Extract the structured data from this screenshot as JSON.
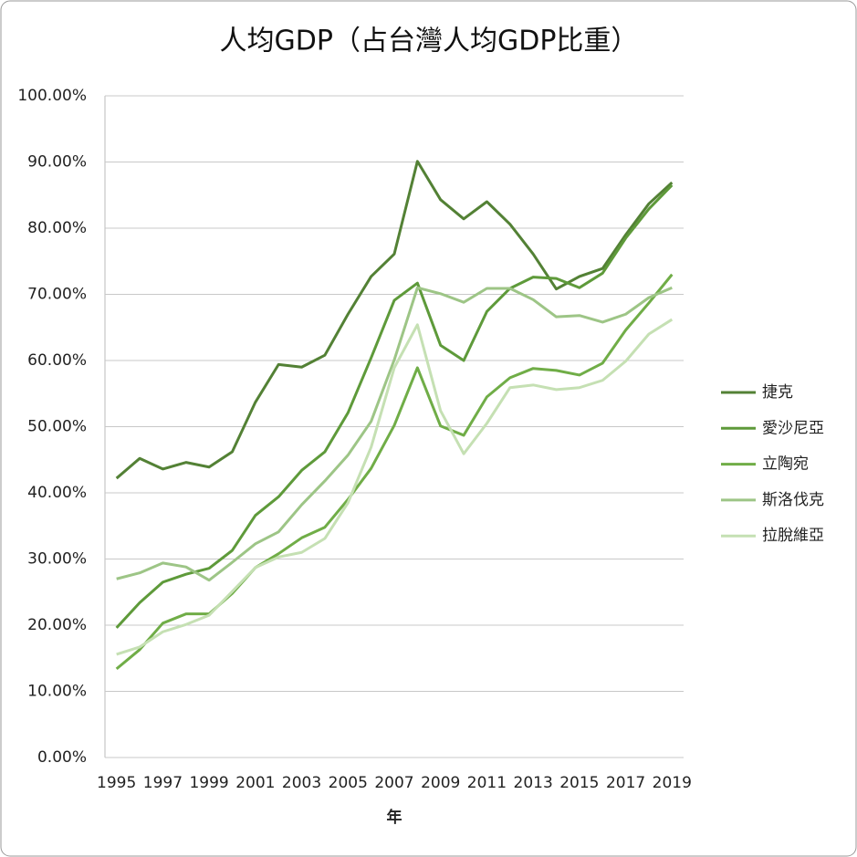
{
  "chart_data": {
    "type": "line",
    "title": "人均GDP（占台灣人均GDP比重）",
    "x_label": "年",
    "x": [
      1995,
      1996,
      1997,
      1998,
      1999,
      2000,
      2001,
      2002,
      2003,
      2004,
      2005,
      2006,
      2007,
      2008,
      2009,
      2010,
      2011,
      2012,
      2013,
      2014,
      2015,
      2016,
      2017,
      2018,
      2019
    ],
    "xlim": [
      1994.5,
      2019.5
    ],
    "xticks": [
      1995,
      1997,
      1999,
      2001,
      2003,
      2005,
      2007,
      2009,
      2011,
      2013,
      2015,
      2017,
      2019
    ],
    "ylim": [
      0,
      100
    ],
    "yticks": [
      {
        "value": 0,
        "label": "0.00%"
      },
      {
        "value": 10,
        "label": "10.00%"
      },
      {
        "value": 20,
        "label": "20.00%"
      },
      {
        "value": 30,
        "label": "30.00%"
      },
      {
        "value": 40,
        "label": "40.00%"
      },
      {
        "value": 50,
        "label": "50.00%"
      },
      {
        "value": 60,
        "label": "60.00%"
      },
      {
        "value": 70,
        "label": "70.00%"
      },
      {
        "value": 80,
        "label": "80.00%"
      },
      {
        "value": 90,
        "label": "90.00%"
      },
      {
        "value": 100,
        "label": "100.00%"
      }
    ],
    "grid": true,
    "legend": "right",
    "series": [
      {
        "name": "捷克",
        "color": "#538135",
        "values": [
          42.2,
          45.2,
          43.6,
          44.6,
          43.9,
          46.2,
          53.7,
          59.4,
          59.0,
          60.8,
          67.0,
          72.7,
          76.1,
          90.1,
          84.3,
          81.4,
          84.0,
          80.6,
          76.1,
          70.8,
          72.7,
          73.9,
          79.0,
          83.7,
          86.9
        ]
      },
      {
        "name": "愛沙尼亞",
        "color": "#5e9a3a",
        "values": [
          19.6,
          23.4,
          26.5,
          27.7,
          28.6,
          31.3,
          36.6,
          39.4,
          43.4,
          46.2,
          52.1,
          60.4,
          69.1,
          71.7,
          62.3,
          60.0,
          67.4,
          70.9,
          72.6,
          72.4,
          71.0,
          73.2,
          78.5,
          82.9,
          86.5
        ]
      },
      {
        "name": "立陶宛",
        "color": "#70ad47",
        "values": [
          13.4,
          16.3,
          20.3,
          21.7,
          21.7,
          24.8,
          28.7,
          30.8,
          33.2,
          34.8,
          39.0,
          43.7,
          50.2,
          58.9,
          50.1,
          48.7,
          54.5,
          57.4,
          58.8,
          58.5,
          57.8,
          59.6,
          64.6,
          68.7,
          73.0
        ]
      },
      {
        "name": "斯洛伐克",
        "color": "#9dc586",
        "values": [
          27.0,
          27.9,
          29.4,
          28.8,
          26.8,
          29.5,
          32.3,
          34.1,
          38.2,
          41.8,
          45.7,
          50.8,
          60.1,
          71.0,
          70.1,
          68.8,
          70.9,
          70.9,
          69.2,
          66.6,
          66.8,
          65.8,
          67.0,
          69.5,
          71.0
        ]
      },
      {
        "name": "拉脫維亞",
        "color": "#c5e0b3",
        "values": [
          15.6,
          16.7,
          19.0,
          20.1,
          21.5,
          25.1,
          28.7,
          30.3,
          31.0,
          33.1,
          38.5,
          46.9,
          58.9,
          65.4,
          52.4,
          45.9,
          50.5,
          55.9,
          56.3,
          55.6,
          55.9,
          57.0,
          59.9,
          64.0,
          66.2
        ]
      }
    ]
  }
}
